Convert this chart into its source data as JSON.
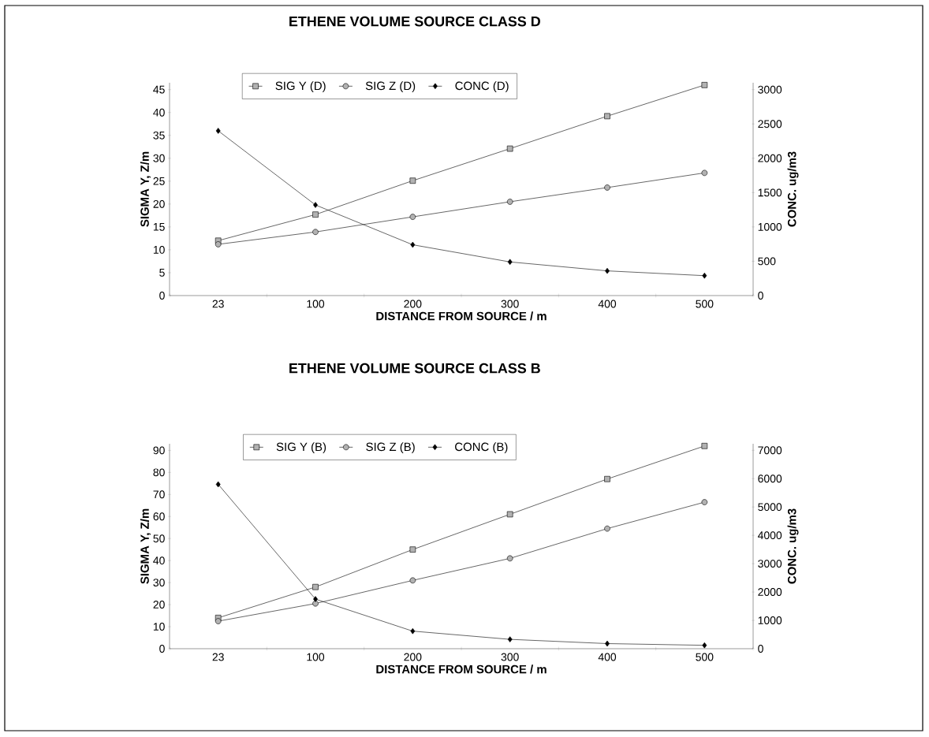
{
  "chart_data": [
    {
      "type": "line",
      "title": "ETHENE VOLUME SOURCE CLASS D",
      "xlabel": "DISTANCE FROM SOURCE / m",
      "ylabel": "SIGMA  Y, Z/m",
      "y2label": "CONC. ug/m3",
      "categories": [
        "23",
        "100",
        "200",
        "300",
        "400",
        "500"
      ],
      "ylim": [
        0,
        46.5
      ],
      "yticks": [
        0,
        5,
        10,
        15,
        20,
        25,
        30,
        35,
        40,
        45
      ],
      "y2lim": [
        0,
        3100
      ],
      "y2ticks": [
        0,
        500,
        1000,
        1500,
        2000,
        2500,
        3000
      ],
      "legend": "top",
      "series": [
        {
          "name": "SIG Y (D)",
          "color": "#000000",
          "marker": "square",
          "values": [
            12.0,
            17.7,
            25.1,
            32.1,
            39.2,
            46.0
          ]
        },
        {
          "name": "SIG Z (D)",
          "color": "#000000",
          "marker": "circle",
          "values": [
            11.2,
            13.9,
            17.2,
            20.5,
            23.6,
            26.8
          ]
        },
        {
          "name": "CONC (D)",
          "color": "#000000",
          "marker": "diamond",
          "axis": "y2",
          "values": [
            2400,
            1320,
            740,
            490,
            360,
            290
          ]
        }
      ]
    },
    {
      "type": "line",
      "title": "ETHENE VOLUME SOURCE CLASS B",
      "xlabel": "DISTANCE FROM SOURCE / m",
      "ylabel": "SIGMA  Y, Z/m",
      "y2label": "CONC. ug/m3",
      "categories": [
        "23",
        "100",
        "200",
        "300",
        "400",
        "500"
      ],
      "ylim": [
        0,
        93
      ],
      "yticks": [
        0,
        10,
        20,
        30,
        40,
        50,
        60,
        70,
        80,
        90
      ],
      "y2lim": [
        0,
        7230
      ],
      "y2ticks": [
        0,
        1000,
        2000,
        3000,
        4000,
        5000,
        6000,
        7000
      ],
      "legend": "top",
      "series": [
        {
          "name": "SIG Y (B)",
          "color": "#000000",
          "marker": "square",
          "values": [
            14,
            28,
            45,
            61,
            77,
            92
          ]
        },
        {
          "name": "SIG Z (B)",
          "color": "#000000",
          "marker": "circle",
          "values": [
            12.5,
            20.5,
            31,
            41,
            54.5,
            66.5
          ]
        },
        {
          "name": "CONC (B)",
          "color": "#000000",
          "marker": "diamond",
          "axis": "y2",
          "values": [
            5800,
            1750,
            620,
            330,
            180,
            120
          ]
        }
      ]
    }
  ]
}
